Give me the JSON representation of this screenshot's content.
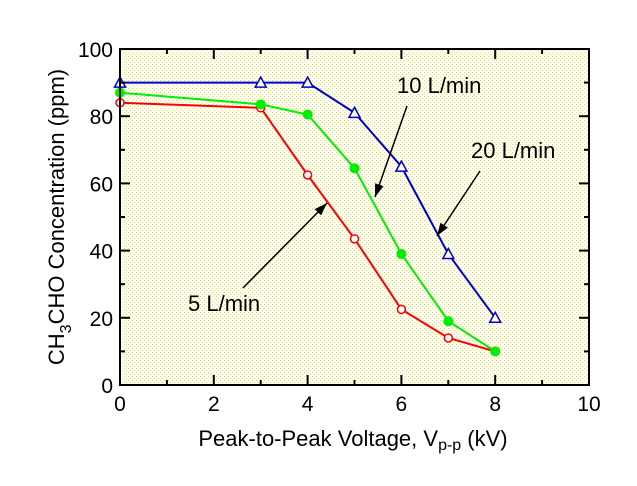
{
  "chart_data": {
    "type": "line",
    "xlabel": {
      "main": "Peak-to-Peak Voltage, V",
      "sub": "p-p",
      "unit": " (kV)"
    },
    "ylabel": {
      "pre": "CH",
      "sub": "3",
      "post": "CHO Concentration (ppm)"
    },
    "xlim": [
      0,
      10
    ],
    "ylim": [
      0,
      100
    ],
    "xticks": [
      "0",
      "2",
      "4",
      "6",
      "8",
      "10"
    ],
    "yticks": [
      "0",
      "20",
      "40",
      "60",
      "80",
      "100"
    ],
    "grid": false,
    "background": "#fffff0",
    "series": [
      {
        "name": "5 L/min",
        "color": "#ff0000",
        "marker": "open-circle",
        "x": [
          0,
          3,
          4,
          5,
          6,
          7,
          8
        ],
        "y": [
          84,
          82.5,
          62.5,
          43.5,
          22.5,
          14,
          10
        ]
      },
      {
        "name": "10 L/min",
        "color": "#00ee00",
        "marker": "filled-circle",
        "x": [
          0,
          3,
          4,
          5,
          6,
          7,
          8
        ],
        "y": [
          87,
          83.5,
          80.5,
          64.5,
          39,
          19,
          10
        ]
      },
      {
        "name": "20 L/min",
        "color": "#0000cc",
        "marker": "open-triangle",
        "x": [
          0,
          3,
          4,
          5,
          6,
          7,
          8
        ],
        "y": [
          90,
          90,
          90,
          81,
          65,
          39,
          20
        ]
      }
    ],
    "annotations": [
      {
        "text": "10 L/min",
        "series": "10 L/min"
      },
      {
        "text": "20 L/min",
        "series": "20 L/min"
      },
      {
        "text": "5 L/min",
        "series": "5 L/min"
      }
    ]
  }
}
